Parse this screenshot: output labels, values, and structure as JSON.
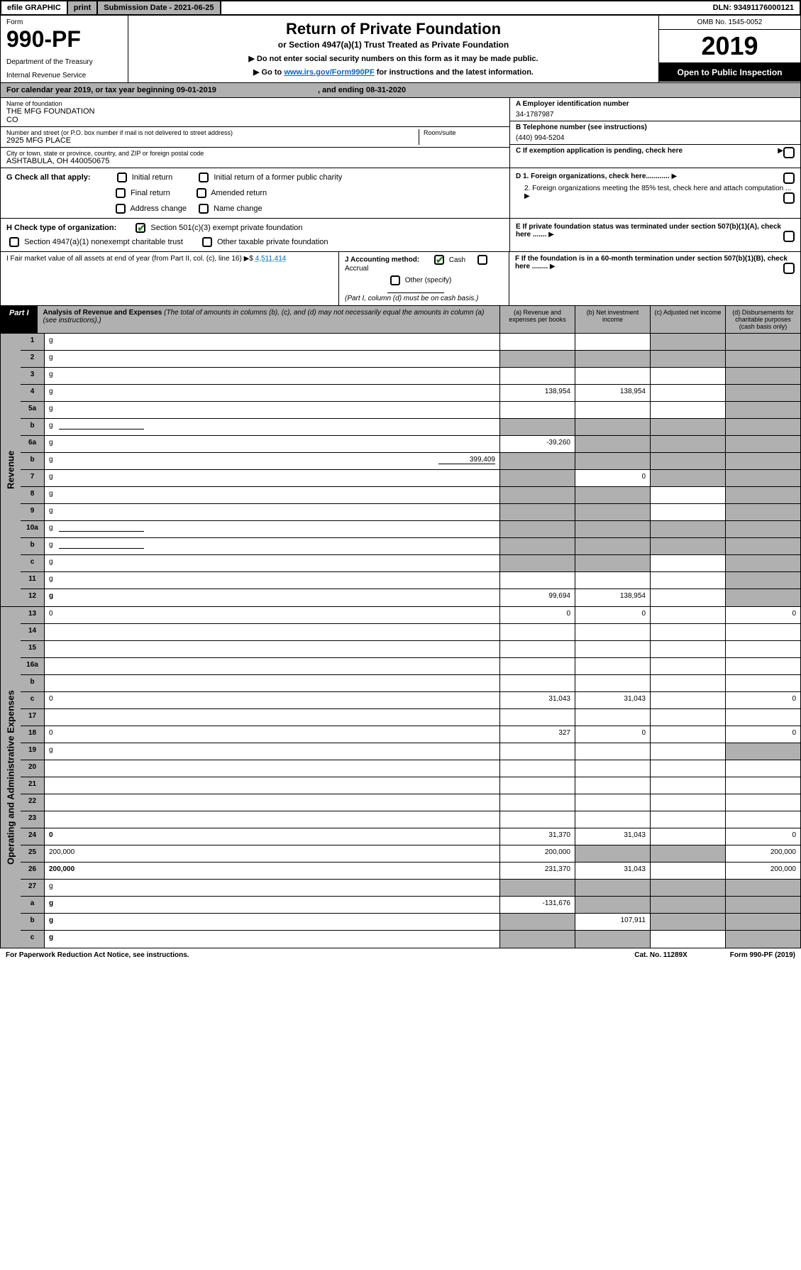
{
  "topbar": {
    "efile": "efile GRAPHIC",
    "print": "print",
    "subdate": "Submission Date - 2021-06-25",
    "dln": "DLN: 93491176000121"
  },
  "header": {
    "form_label": "Form",
    "form_num": "990-PF",
    "dept1": "Department of the Treasury",
    "dept2": "Internal Revenue Service",
    "title": "Return of Private Foundation",
    "subtitle": "or Section 4947(a)(1) Trust Treated as Private Foundation",
    "instr1": "▶ Do not enter social security numbers on this form as it may be made public.",
    "instr2_pre": "▶ Go to ",
    "instr2_link": "www.irs.gov/Form990PF",
    "instr2_post": " for instructions and the latest information.",
    "omb": "OMB No. 1545-0052",
    "year": "2019",
    "open": "Open to Public Inspection"
  },
  "calyear": {
    "text_pre": "For calendar year 2019, or tax year beginning ",
    "begin": "09-01-2019",
    "text_mid": " , and ending ",
    "end": "08-31-2020"
  },
  "info": {
    "name_label": "Name of foundation",
    "name": "THE MFG FOUNDATION",
    "co": "CO",
    "addr_label": "Number and street (or P.O. box number if mail is not delivered to street address)",
    "addr": "2925 MFG PLACE",
    "room_label": "Room/suite",
    "city_label": "City or town, state or province, country, and ZIP or foreign postal code",
    "city": "ASHTABULA, OH  440050675",
    "ein_label": "A Employer identification number",
    "ein": "34-1787987",
    "phone_label": "B Telephone number (see instructions)",
    "phone": "(440) 994-5204",
    "c_label": "C If exemption application is pending, check here"
  },
  "checks": {
    "g_label": "G Check all that apply:",
    "g_items": [
      "Initial return",
      "Initial return of a former public charity",
      "Final return",
      "Amended return",
      "Address change",
      "Name change"
    ],
    "h_label": "H Check type of organization:",
    "h1": "Section 501(c)(3) exempt private foundation",
    "h2": "Section 4947(a)(1) nonexempt charitable trust",
    "h3": "Other taxable private foundation",
    "d1": "D 1. Foreign organizations, check here............",
    "d2": "2. Foreign organizations meeting the 85% test, check here and attach computation ...",
    "e_label": "E  If private foundation status was terminated under section 507(b)(1)(A), check here .......",
    "f_label": "F  If the foundation is in a 60-month termination under section 507(b)(1)(B), check here ........"
  },
  "fmv": {
    "i_label": "I Fair market value of all assets at end of year (from Part II, col. (c), line 16) ▶$",
    "i_val": "4,511,414",
    "j_label": "J Accounting method:",
    "j_cash": "Cash",
    "j_accrual": "Accrual",
    "j_other": "Other (specify)",
    "j_note": "(Part I, column (d) must be on cash basis.)"
  },
  "part1": {
    "label": "Part I",
    "title": "Analysis of Revenue and Expenses",
    "note": "(The total of amounts in columns (b), (c), and (d) may not necessarily equal the amounts in column (a) (see instructions).)",
    "cols": {
      "a": "(a)   Revenue and expenses per books",
      "b": "(b)  Net investment income",
      "c": "(c)  Adjusted net income",
      "d": "(d)  Disbursements for charitable purposes (cash basis only)"
    }
  },
  "revenue_label": "Revenue",
  "expenses_label": "Operating and Administrative Expenses",
  "rows": [
    {
      "n": "1",
      "d": "g",
      "a": "",
      "b": "",
      "c": "g"
    },
    {
      "n": "2",
      "d": "g",
      "a": "g",
      "b": "g",
      "c": "g",
      "bold_not": true
    },
    {
      "n": "3",
      "d": "g",
      "a": "",
      "b": "",
      "c": ""
    },
    {
      "n": "4",
      "d": "g",
      "a": "138,954",
      "b": "138,954",
      "c": ""
    },
    {
      "n": "5a",
      "d": "g",
      "a": "",
      "b": "",
      "c": ""
    },
    {
      "n": "b",
      "d": "g",
      "a": "g",
      "b": "g",
      "c": "g",
      "line": true
    },
    {
      "n": "6a",
      "d": "g",
      "a": "-39,260",
      "b": "g",
      "c": "g"
    },
    {
      "n": "b",
      "d": "g",
      "a": "g",
      "b": "g",
      "c": "g",
      "inline_val": "399,409"
    },
    {
      "n": "7",
      "d": "g",
      "a": "g",
      "b": "0",
      "c": "g"
    },
    {
      "n": "8",
      "d": "g",
      "a": "g",
      "b": "g",
      "c": ""
    },
    {
      "n": "9",
      "d": "g",
      "a": "g",
      "b": "g",
      "c": ""
    },
    {
      "n": "10a",
      "d": "g",
      "a": "g",
      "b": "g",
      "c": "g",
      "line": true
    },
    {
      "n": "b",
      "d": "g",
      "a": "g",
      "b": "g",
      "c": "g",
      "line": true
    },
    {
      "n": "c",
      "d": "g",
      "a": "g",
      "b": "g",
      "c": ""
    },
    {
      "n": "11",
      "d": "g",
      "a": "",
      "b": "",
      "c": ""
    },
    {
      "n": "12",
      "d": "g",
      "a": "99,694",
      "b": "138,954",
      "c": "",
      "bold": true
    }
  ],
  "exp_rows": [
    {
      "n": "13",
      "d": "0",
      "a": "0",
      "b": "0",
      "c": ""
    },
    {
      "n": "14",
      "d": "",
      "a": "",
      "b": "",
      "c": ""
    },
    {
      "n": "15",
      "d": "",
      "a": "",
      "b": "",
      "c": ""
    },
    {
      "n": "16a",
      "d": "",
      "a": "",
      "b": "",
      "c": ""
    },
    {
      "n": "b",
      "d": "",
      "a": "",
      "b": "",
      "c": ""
    },
    {
      "n": "c",
      "d": "0",
      "a": "31,043",
      "b": "31,043",
      "c": ""
    },
    {
      "n": "17",
      "d": "",
      "a": "",
      "b": "",
      "c": ""
    },
    {
      "n": "18",
      "d": "0",
      "a": "327",
      "b": "0",
      "c": ""
    },
    {
      "n": "19",
      "d": "g",
      "a": "",
      "b": "",
      "c": ""
    },
    {
      "n": "20",
      "d": "",
      "a": "",
      "b": "",
      "c": ""
    },
    {
      "n": "21",
      "d": "",
      "a": "",
      "b": "",
      "c": ""
    },
    {
      "n": "22",
      "d": "",
      "a": "",
      "b": "",
      "c": ""
    },
    {
      "n": "23",
      "d": "",
      "a": "",
      "b": "",
      "c": ""
    },
    {
      "n": "24",
      "d": "0",
      "a": "31,370",
      "b": "31,043",
      "c": "",
      "bold": true
    },
    {
      "n": "25",
      "d": "200,000",
      "a": "200,000",
      "b": "g",
      "c": "g"
    },
    {
      "n": "26",
      "d": "200,000",
      "a": "231,370",
      "b": "31,043",
      "c": "",
      "bold": true
    },
    {
      "n": "27",
      "d": "g",
      "a": "g",
      "b": "g",
      "c": "g"
    },
    {
      "n": "a",
      "d": "g",
      "a": "-131,676",
      "b": "g",
      "c": "g",
      "bold": true
    },
    {
      "n": "b",
      "d": "g",
      "a": "g",
      "b": "107,911",
      "c": "g",
      "bold": true
    },
    {
      "n": "c",
      "d": "g",
      "a": "g",
      "b": "g",
      "c": "",
      "bold": true
    }
  ],
  "footer": {
    "left": "For Paperwork Reduction Act Notice, see instructions.",
    "mid": "Cat. No. 11289X",
    "right": "Form 990-PF (2019)"
  },
  "colors": {
    "grey": "#b0b0b0",
    "link": "#0066cc",
    "check": "#2a7a2a"
  }
}
